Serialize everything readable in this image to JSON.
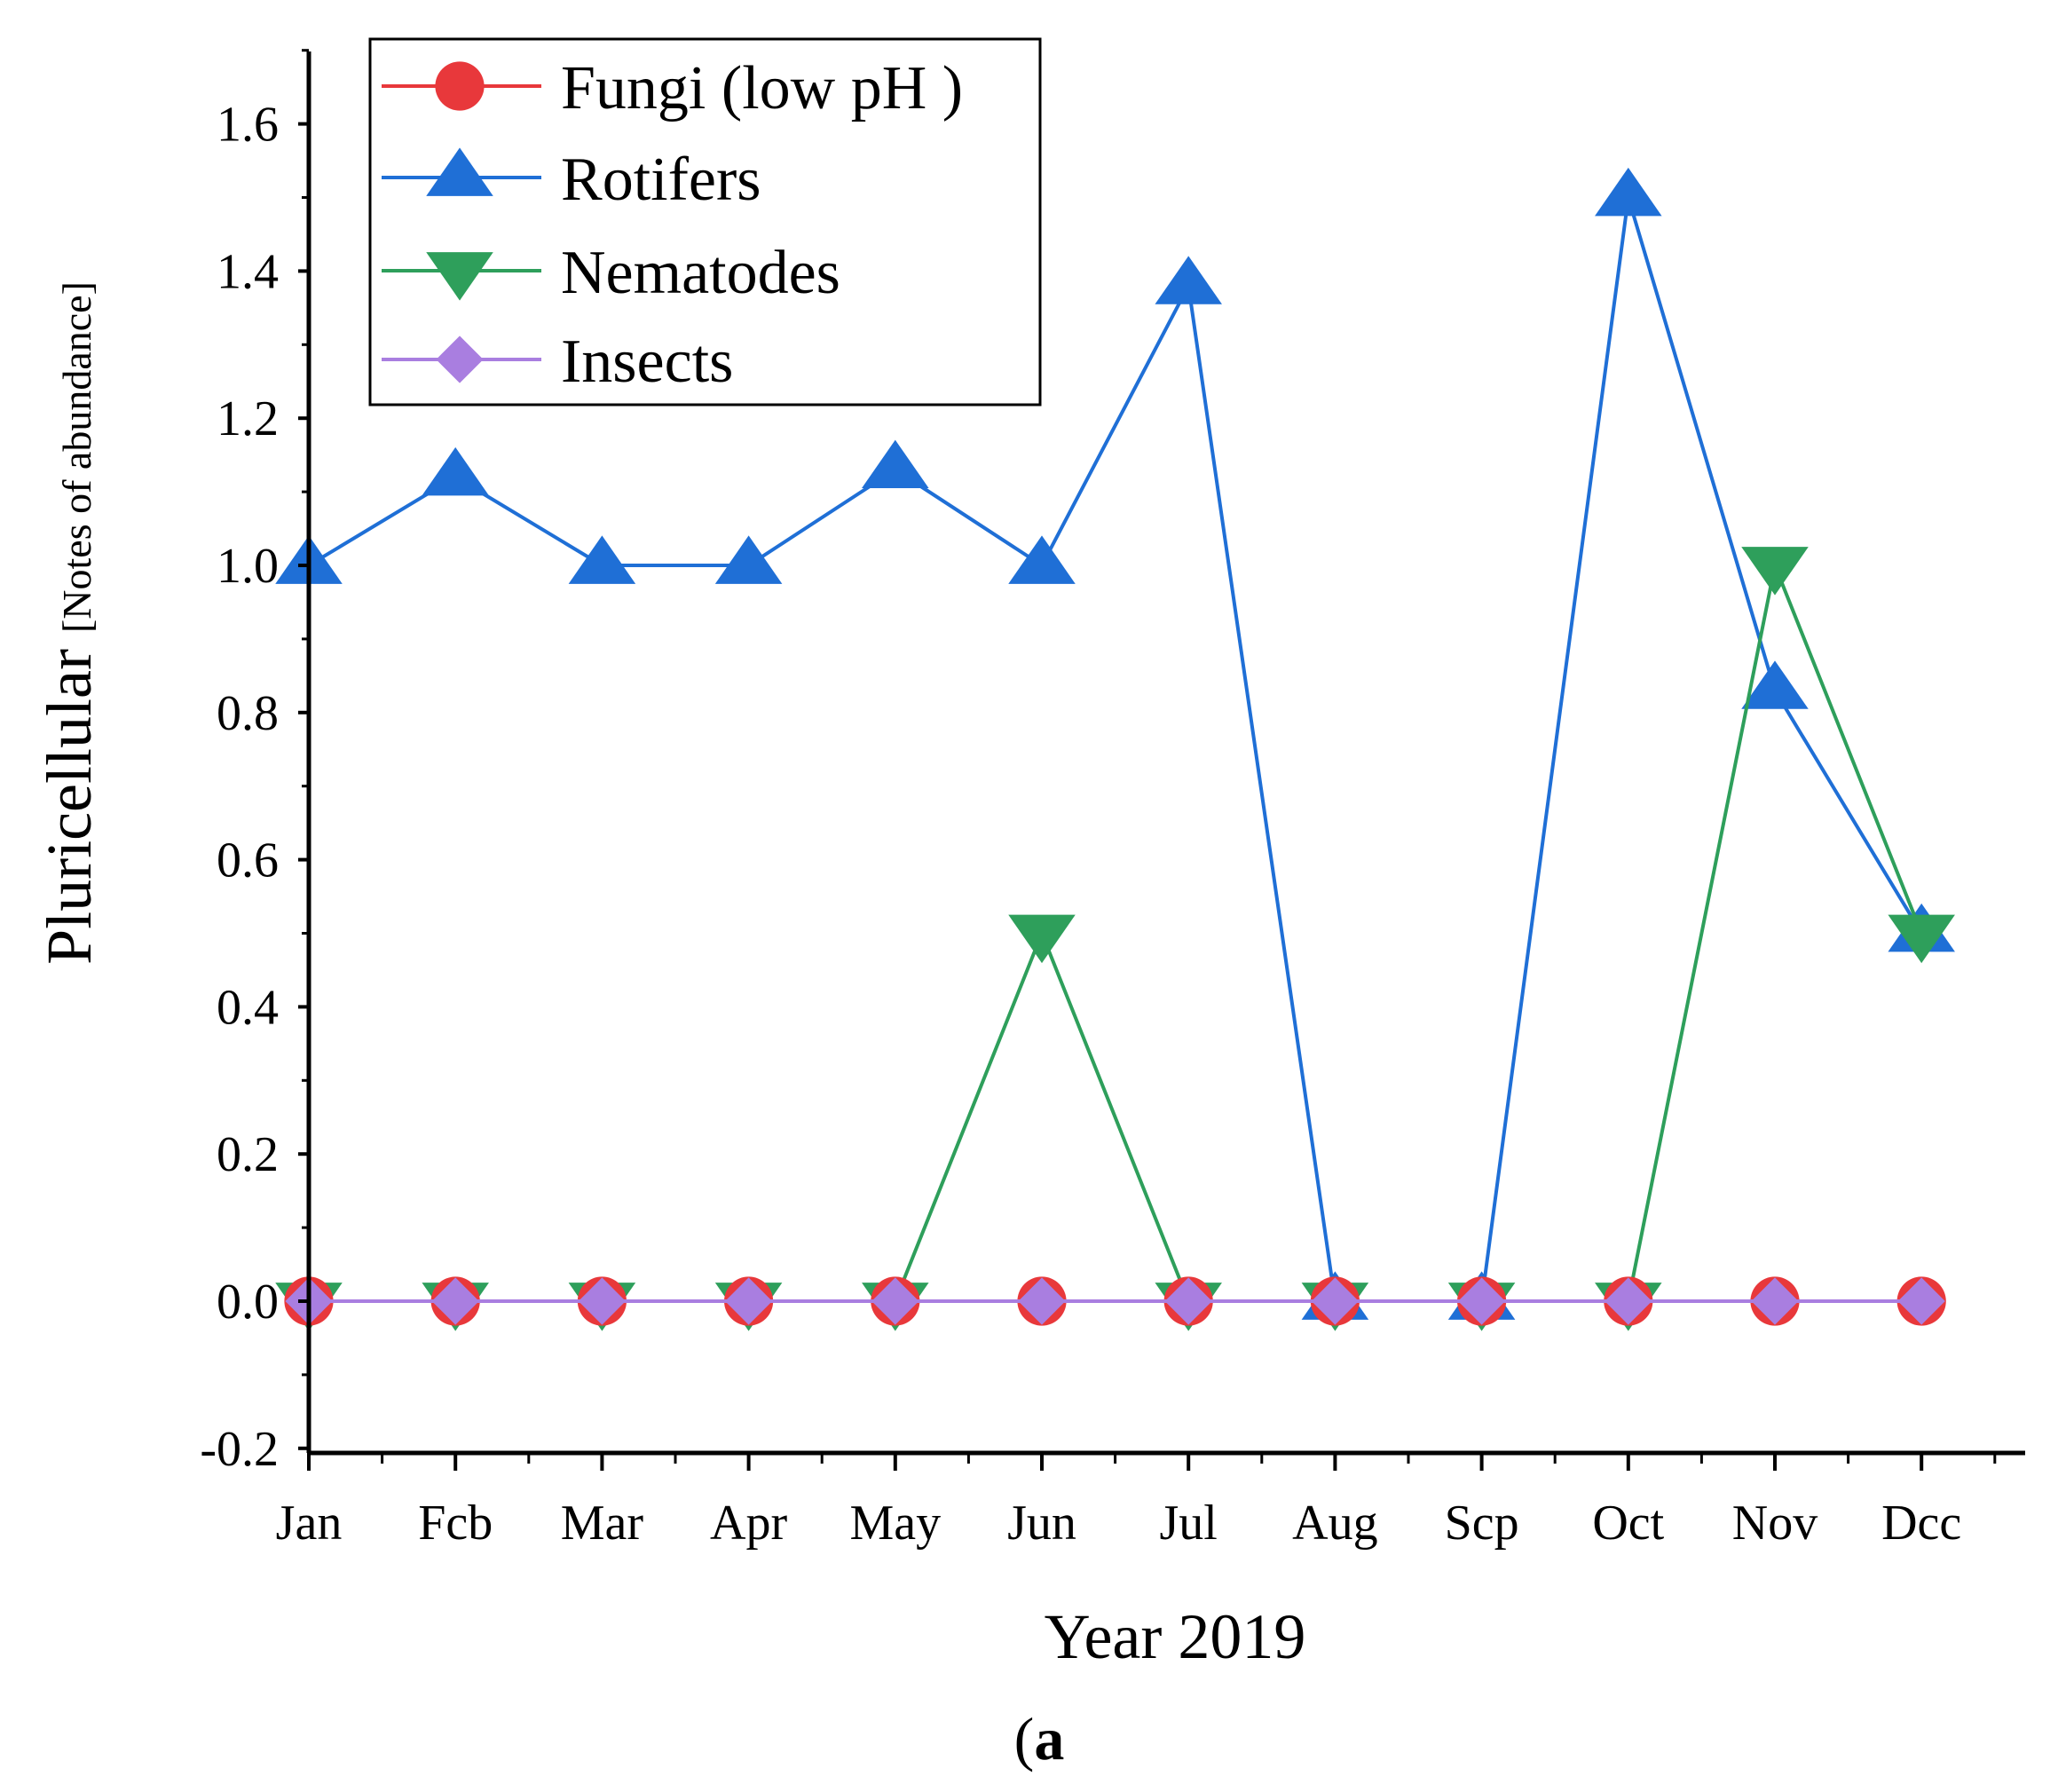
{
  "chart_data": {
    "type": "line",
    "title": "",
    "xlabel": "Year 2019",
    "ylabel_main": "Pluricellular",
    "ylabel_sub": "[Notes of abundance]",
    "panel_label_paren_open": "(",
    "panel_label_letter": "a",
    "panel_label_paren_close": ")",
    "categories": [
      "Jan",
      "Fcb",
      "Mar",
      "Apr",
      "May",
      "Jun",
      "Jul",
      "Aug",
      "Scp",
      "Oct",
      "Nov",
      "Dcc"
    ],
    "ylim": [
      -0.2,
      1.7
    ],
    "yticks": [
      "-0.2",
      "0.0",
      "0.2",
      "0.4",
      "0.6",
      "0.8",
      "1.0",
      "1.2",
      "1.4",
      "1.6"
    ],
    "legend_position": "top-left",
    "series": [
      {
        "name": "Fungi (low pH )",
        "color": "#e8383b",
        "marker": "circle",
        "values": [
          0,
          0,
          0,
          0,
          0,
          0,
          0,
          0,
          0,
          0,
          0,
          0
        ]
      },
      {
        "name": "Rotifers",
        "color": "#1f6fd6",
        "marker": "triangle-up",
        "values": [
          1.0,
          1.12,
          1.0,
          1.0,
          1.13,
          1.0,
          1.38,
          0,
          0,
          1.5,
          0.83,
          0.5
        ]
      },
      {
        "name": "Nematodes",
        "color": "#2e9f5b",
        "marker": "triangle-down",
        "values": [
          0,
          0,
          0,
          0,
          0,
          0.5,
          0,
          0,
          0,
          0,
          1.0,
          0.5
        ]
      },
      {
        "name": "Insects",
        "color": "#a97ee0",
        "marker": "diamond",
        "values": [
          0,
          0,
          0,
          0,
          0,
          0,
          0,
          0,
          0,
          0,
          0,
          0
        ]
      }
    ]
  }
}
